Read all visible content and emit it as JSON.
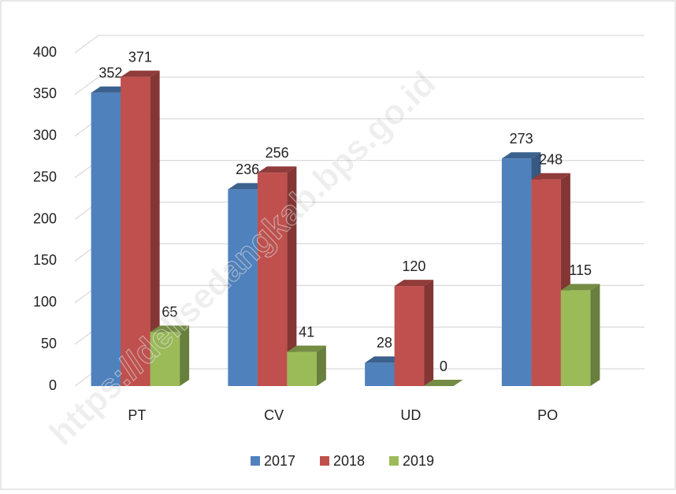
{
  "chart_data": {
    "type": "bar3d",
    "categories": [
      "PT",
      "CV",
      "UD",
      "PO"
    ],
    "series": [
      {
        "name": "2017",
        "color": "#4f81bd",
        "values": [
          352,
          236,
          28,
          273
        ]
      },
      {
        "name": "2018",
        "color": "#c0504d",
        "values": [
          371,
          256,
          120,
          248
        ]
      },
      {
        "name": "2019",
        "color": "#9bbb59",
        "values": [
          65,
          41,
          0,
          115
        ]
      }
    ],
    "ylim": [
      0,
      400
    ],
    "yticks": [
      0,
      50,
      100,
      150,
      200,
      250,
      300,
      350,
      400
    ],
    "grid": true,
    "legend": "bottom",
    "watermark": "https://delisedangkab.bps.go.id"
  }
}
